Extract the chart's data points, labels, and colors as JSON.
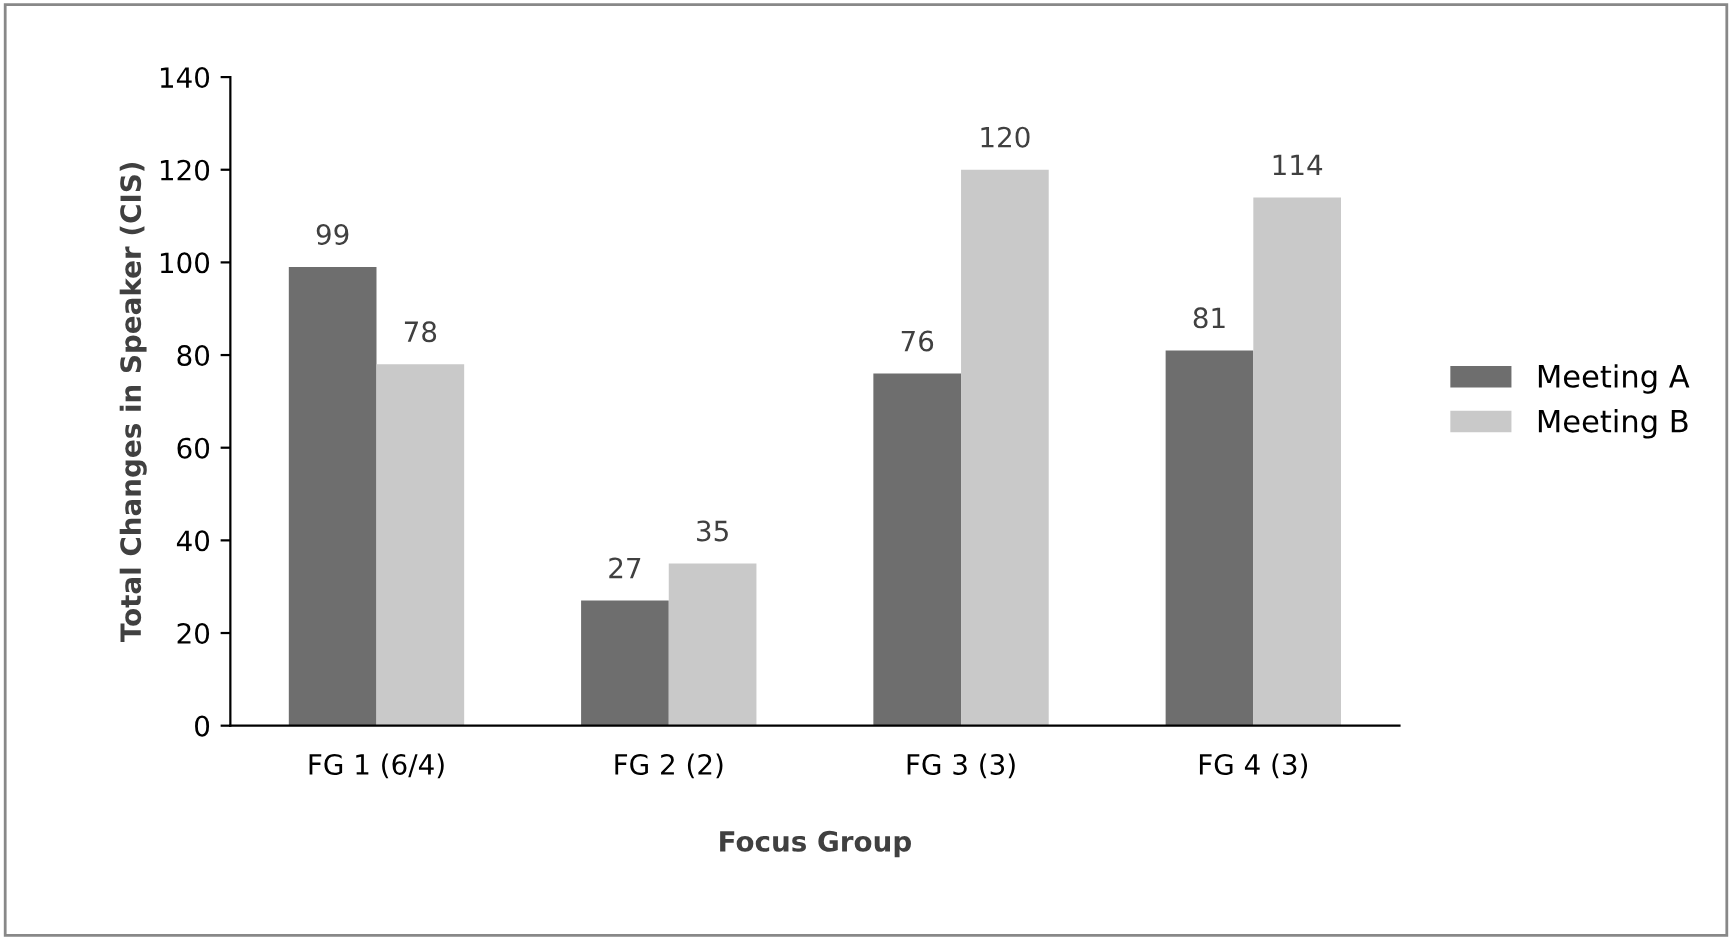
{
  "chart_data": {
    "type": "bar",
    "xlabel": "Focus Group",
    "ylabel": "Total Changes in Speaker (CIS)",
    "categories": [
      "FG 1 (6/4)",
      "FG 2 (2)",
      "FG 3 (3)",
      "FG 4 (3)"
    ],
    "series": [
      {
        "name": "Meeting A",
        "color": "#6e6e6e",
        "values": [
          99,
          27,
          76,
          81
        ]
      },
      {
        "name": "Meeting B",
        "color": "#c9c9c9",
        "values": [
          78,
          35,
          120,
          114
        ]
      }
    ],
    "ylim": [
      0,
      140
    ],
    "yticks": [
      0,
      20,
      40,
      60,
      80,
      100,
      120,
      140
    ],
    "data_labels": true,
    "legend": "right",
    "grid": false
  }
}
